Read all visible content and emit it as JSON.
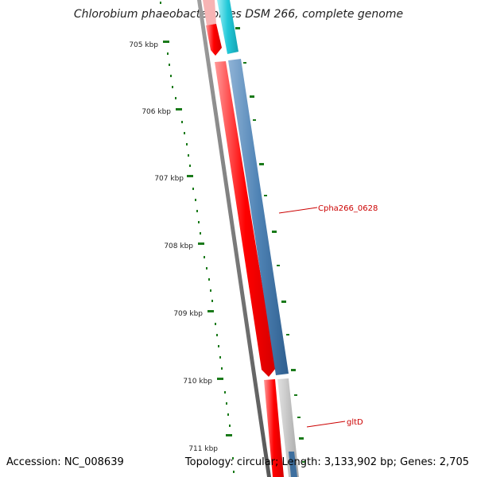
{
  "title": "Chlorobium phaeobacteroides DSM 266, complete genome",
  "footer": {
    "accession": "Accession: NC_008639",
    "summary": "Topology: circular; Length: 3,133,902 bp; Genes: 2,705"
  },
  "ticks": [
    "705 kbp",
    "706 kbp",
    "707 kbp",
    "708 kbp",
    "709 kbp",
    "710 kbp",
    "711 kbp"
  ],
  "gene_labels": [
    "Cpha266_0628",
    "gltD"
  ],
  "colors": {
    "tick_green": "#1a7a1a",
    "gene_red": "#ff0000",
    "gene_blue": "#4f83b5",
    "gene_cyan": "#22c8d8",
    "gene_grey": "#b8b8b8",
    "backbone": "#777777",
    "label_red": "#cc0000"
  }
}
